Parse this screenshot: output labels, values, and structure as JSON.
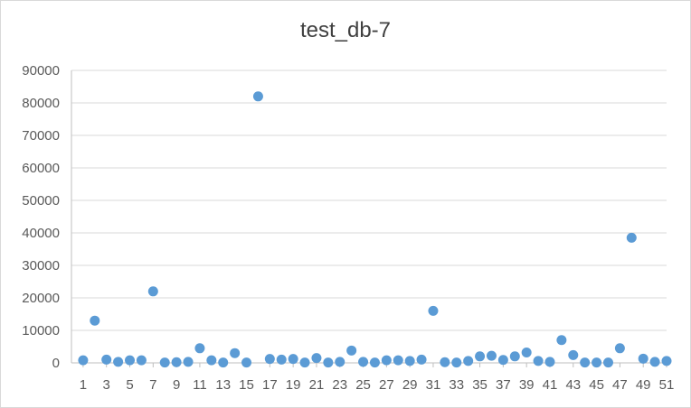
{
  "chart_data": {
    "type": "scatter",
    "title": "test_db-7",
    "xlabel": "",
    "ylabel": "",
    "xlim": [
      0,
      51
    ],
    "ylim": [
      0,
      90000
    ],
    "x_ticks": [
      1,
      3,
      5,
      7,
      9,
      11,
      13,
      15,
      17,
      19,
      21,
      23,
      25,
      27,
      29,
      31,
      33,
      35,
      37,
      39,
      41,
      43,
      45,
      47,
      49,
      51
    ],
    "y_ticks": [
      0,
      10000,
      20000,
      30000,
      40000,
      50000,
      60000,
      70000,
      80000,
      90000
    ],
    "grid": "horizontal",
    "legend": "none",
    "marker_color": "#5b9bd5",
    "series": [
      {
        "x": [
          1,
          2,
          3,
          4,
          5,
          6,
          7,
          8,
          9,
          10,
          11,
          12,
          13,
          14,
          15,
          16,
          17,
          18,
          19,
          20,
          21,
          22,
          23,
          24,
          25,
          26,
          27,
          28,
          29,
          30,
          31,
          32,
          33,
          34,
          35,
          36,
          37,
          38,
          39,
          40,
          41,
          42,
          43,
          44,
          45,
          46,
          47,
          48,
          49,
          50,
          51
        ],
        "y": [
          800,
          13000,
          1000,
          300,
          800,
          800,
          22000,
          100,
          200,
          300,
          4500,
          800,
          100,
          3000,
          100,
          82000,
          1200,
          1000,
          1200,
          100,
          1500,
          100,
          300,
          3800,
          300,
          100,
          800,
          800,
          600,
          1000,
          16000,
          200,
          100,
          600,
          2000,
          2200,
          900,
          2000,
          3200,
          600,
          300,
          7000,
          2400,
          100,
          100,
          100,
          4500,
          38500,
          1300,
          300,
          600
        ]
      }
    ]
  }
}
